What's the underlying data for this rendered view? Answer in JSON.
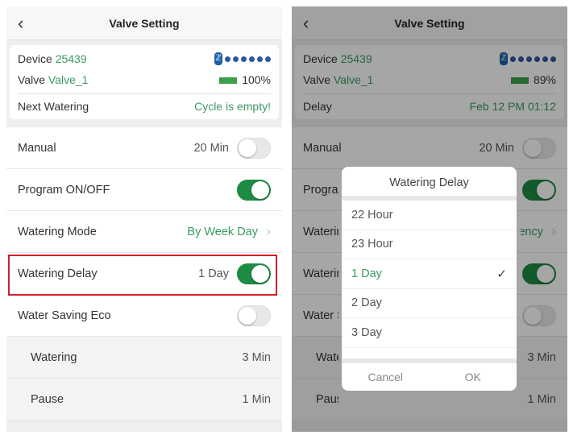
{
  "left": {
    "title": "Valve Setting",
    "device_label": "Device",
    "device_id": "25439",
    "valve_label": "Valve",
    "valve_name": "Valve_1",
    "battery": "100%",
    "info_label": "Next Watering",
    "info_value": "Cycle is empty!",
    "rows": [
      {
        "label": "Manual",
        "value": "20 Min",
        "toggle": false
      },
      {
        "label": "Program ON/OFF",
        "value": "",
        "toggle": true
      },
      {
        "label": "Watering Mode",
        "value": "By Week Day"
      },
      {
        "label": "Watering Delay",
        "value": "1 Day",
        "toggle": true
      },
      {
        "label": "Water Saving Eco",
        "value": "",
        "toggle": false
      }
    ],
    "sub_rows": [
      {
        "label": "Watering",
        "value": "3 Min"
      },
      {
        "label": "Pause",
        "value": "1 Min"
      }
    ]
  },
  "right": {
    "title": "Valve Setting",
    "device_label": "Device",
    "device_id": "25439",
    "valve_label": "Valve",
    "valve_name": "Valve_1",
    "battery": "89%",
    "info_label": "Delay",
    "info_value": "Feb 12 PM 01:12",
    "rows": [
      {
        "label": "Manual",
        "value": "20 Min",
        "toggle": false
      },
      {
        "label": "Program ON/OFF",
        "value": "",
        "toggle": true
      },
      {
        "label": "Watering Mode",
        "value": "By Frequency"
      },
      {
        "label": "Watering Delay",
        "value": "",
        "toggle": true
      },
      {
        "label": "Water Saving Eco",
        "value": "",
        "toggle": false
      }
    ],
    "sub_rows": [
      {
        "label": "Watering",
        "value": "3 Min"
      },
      {
        "label": "Pause",
        "value": "1 Min"
      }
    ]
  },
  "modal": {
    "title": "Watering Delay",
    "options": [
      "22 Hour",
      "23 Hour",
      "1 Day",
      "2 Day",
      "3 Day"
    ],
    "selected": "1 Day",
    "cancel": "Cancel",
    "ok": "OK"
  },
  "colors": {
    "accent": "#3a9a63",
    "toggle_on": "#1e8a42",
    "highlight": "#d0202a"
  }
}
